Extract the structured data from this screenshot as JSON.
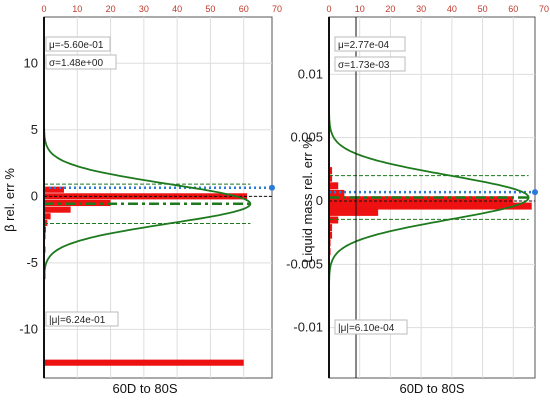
{
  "chart_data": [
    {
      "type": "bar",
      "orientation": "horizontal-histogram",
      "ylabel": "β rel. err %",
      "xlabel": "60D to 80S",
      "ylim": [
        -13.2,
        12.5
      ],
      "xlim_top": [
        0,
        70
      ],
      "y_ticks": [
        "10",
        "5",
        "0",
        "-5",
        "-10"
      ],
      "y_tick_values": [
        10,
        5,
        0,
        -5,
        -10
      ],
      "top_ticks": [
        "0",
        "10",
        "20",
        "30",
        "40",
        "50",
        "60",
        "70"
      ],
      "grid": true,
      "stats": {
        "mean": "μ=-5.60e-01",
        "sigma": "σ=1.48e+00",
        "abs_mean": "|μ|=6.24e-01"
      },
      "bins": [
        {
          "y": 0.5,
          "count": 6
        },
        {
          "y": 0.0,
          "count": 61
        },
        {
          "y": -0.5,
          "count": 20
        },
        {
          "y": -1.0,
          "count": 8
        },
        {
          "y": -1.5,
          "count": 2
        },
        {
          "y": -2.0,
          "count": 1
        },
        {
          "y": -2.5,
          "count": 0.6
        },
        {
          "y": -3.0,
          "count": 0.4
        },
        {
          "y": -4.0,
          "count": 0.3
        },
        {
          "y": -5.5,
          "count": 0.2
        },
        {
          "y": -6.0,
          "count": 0.2
        },
        {
          "y": -12.5,
          "count": 60
        }
      ],
      "curve": {
        "mean": -0.56,
        "sigma": 1.48,
        "peak": 62
      },
      "reference_lines": {
        "mean": -0.56,
        "zero": 0,
        "band": [
          -2.04,
          0.92
        ],
        "marker_y": 0.65
      }
    },
    {
      "type": "bar",
      "orientation": "horizontal-histogram",
      "ylabel": "Liquid mass rel. err %",
      "xlabel": "60D to 80S",
      "ylim": [
        -0.0135,
        0.0135
      ],
      "xlim_top": [
        0,
        70
      ],
      "y_ticks": [
        "0.01",
        "0.005",
        "0",
        "-0.005",
        "-0.01"
      ],
      "y_tick_values": [
        0.01,
        0.005,
        0,
        -0.005,
        -0.01
      ],
      "top_ticks": [
        "0",
        "10",
        "20",
        "30",
        "40",
        "50",
        "60",
        "70"
      ],
      "grid": true,
      "stats": {
        "mean": "μ=2.77e-04",
        "sigma": "σ=1.73e-03",
        "abs_mean": "|μ|=6.10e-04"
      },
      "bins": [
        {
          "y": 0.0024,
          "count": 1
        },
        {
          "y": 0.0018,
          "count": 1
        },
        {
          "y": 0.0012,
          "count": 3
        },
        {
          "y": 0.0006,
          "count": 5
        },
        {
          "y": 0.0001,
          "count": 60
        },
        {
          "y": -0.0004,
          "count": 66
        },
        {
          "y": -0.0009,
          "count": 16
        },
        {
          "y": -0.0015,
          "count": 3
        },
        {
          "y": -0.0021,
          "count": 1
        },
        {
          "y": -0.0027,
          "count": 1
        },
        {
          "y": -0.0033,
          "count": 0.5
        },
        {
          "y": -0.004,
          "count": 0.5
        }
      ],
      "curve": {
        "mean": 0.000277,
        "sigma": 0.00173,
        "peak": 65
      },
      "reference_lines": {
        "mean": 0.000277,
        "zero": 0,
        "band": [
          -0.00145,
          0.002
        ],
        "marker_y": 0.0007
      }
    }
  ],
  "colors": {
    "bar": "#ee1111",
    "curve": "#1e7a1e",
    "mean_line": "#1e7a1e",
    "marker": "#2b7bd6",
    "grid": "#dddddd",
    "top_tick": "#c0392b",
    "zero_line": "#111111"
  }
}
